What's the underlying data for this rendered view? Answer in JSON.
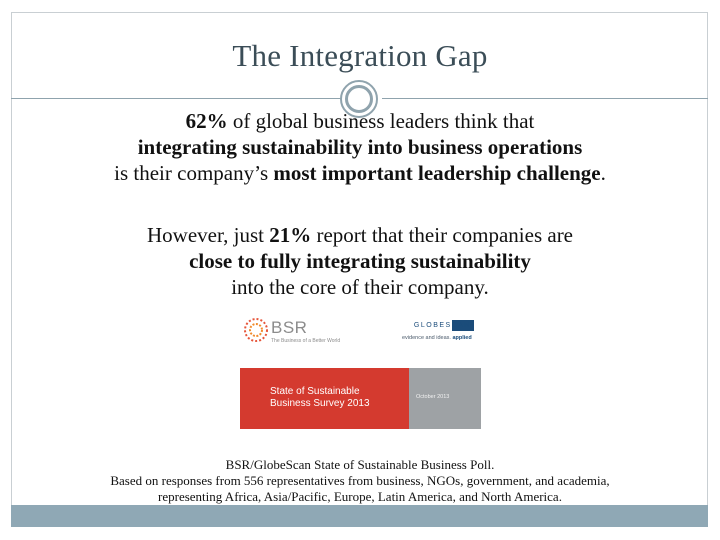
{
  "slide": {
    "title": "The Integration Gap",
    "para1": {
      "line1_stat": "62%",
      "line1_rest": " of global business leaders think that",
      "line2_bold": "integrating sustainability into business operations",
      "line3_pre": "is their company’s ",
      "line3_bold": "most important leadership challenge",
      "line3_end": "."
    },
    "para2": {
      "line1_pre": "However, just ",
      "line1_stat": "21%",
      "line1_rest": " report that their companies are",
      "line2_bold": "close to fully integrating sustainability",
      "line3": "into the core of their company."
    },
    "logos": {
      "bsr_name": "BSR",
      "bsr_tagline": "The Business of a Better World",
      "globescan_name": "GLOBESCAN",
      "globescan_tag_pre": "evidence and ideas. ",
      "globescan_tag_bold": "applied"
    },
    "report_cover": {
      "title_line1": "State of Sustainable",
      "title_line2": "Business Survey 2013",
      "date": "October 2013",
      "colors": {
        "left": "#d43a2f",
        "right": "#9ea2a5"
      }
    },
    "source": {
      "line1": "BSR/GlobeScan State of Sustainable Business Poll.",
      "line2": "Based on responses from 556 representatives from business, NGOs, government, and academia,",
      "line3": "representing Africa, Asia/Pacific, Europe, Latin America, and North America."
    },
    "colors": {
      "accent": "#8fa8b5",
      "title": "#3b4d57"
    }
  }
}
